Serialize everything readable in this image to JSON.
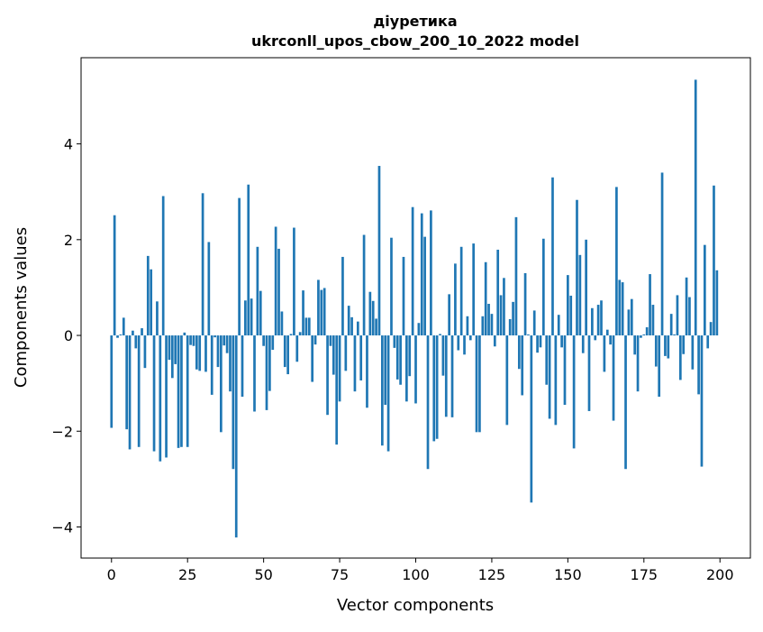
{
  "chart_data": {
    "type": "bar",
    "title": "діуретика",
    "subtitle": "ukrconll_upos_cbow_200_10_2022 model",
    "xlabel": "Vector components",
    "ylabel": "Components values",
    "xlim": [
      -10,
      210
    ],
    "ylim": [
      -4.65,
      5.8
    ],
    "xticks": [
      0,
      25,
      50,
      75,
      100,
      125,
      150,
      175,
      200
    ],
    "yticks": [
      -4,
      -2,
      0,
      2,
      4
    ],
    "ytick_labels": [
      "−4",
      "−2",
      "0",
      "2",
      "4"
    ],
    "bar_color": "#1f77b4",
    "grid": false,
    "values": [
      -1.93,
      2.51,
      -0.05,
      0.02,
      0.37,
      -1.96,
      -2.38,
      0.1,
      -0.27,
      -2.33,
      0.15,
      -0.68,
      1.66,
      1.38,
      -2.42,
      0.71,
      -2.63,
      2.91,
      -2.55,
      -0.51,
      -0.89,
      -0.6,
      -2.35,
      -2.33,
      0.06,
      -2.33,
      -0.2,
      -0.22,
      -0.71,
      -0.74,
      2.97,
      -0.76,
      1.95,
      -1.24,
      -0.04,
      -0.66,
      -2.02,
      -0.21,
      -0.37,
      -1.17,
      -2.79,
      -4.22,
      2.87,
      -1.28,
      0.73,
      3.15,
      0.77,
      -1.59,
      1.85,
      0.93,
      -0.22,
      -1.56,
      -1.16,
      -0.3,
      2.27,
      1.81,
      0.5,
      -0.66,
      -0.81,
      0.03,
      2.25,
      -0.55,
      0.07,
      0.94,
      0.37,
      0.37,
      -0.97,
      -0.19,
      1.16,
      0.95,
      0.99,
      -1.66,
      -0.22,
      -0.82,
      -2.28,
      -1.38,
      1.64,
      -0.74,
      0.62,
      0.38,
      -1.17,
      0.29,
      -0.94,
      2.1,
      -1.51,
      0.91,
      0.72,
      0.35,
      3.54,
      -2.3,
      -1.45,
      -2.42,
      2.04,
      -0.26,
      -0.92,
      -1.03,
      1.64,
      -1.38,
      -0.85,
      2.68,
      -1.42,
      0.26,
      2.55,
      2.06,
      -2.79,
      2.61,
      -2.21,
      -2.16,
      0.03,
      -0.84,
      -1.7,
      0.86,
      -1.71,
      1.5,
      -0.31,
      1.85,
      -0.4,
      0.4,
      -0.1,
      1.92,
      -2.02,
      -2.02,
      0.4,
      1.53,
      0.66,
      0.45,
      -0.23,
      1.79,
      0.84,
      1.2,
      -1.87,
      0.34,
      0.7,
      2.47,
      -0.7,
      -1.25,
      1.3,
      0.02,
      -3.49,
      0.52,
      -0.36,
      -0.25,
      2.02,
      -1.03,
      -1.74,
      3.3,
      -1.87,
      0.43,
      -0.25,
      -1.45,
      1.26,
      0.83,
      -2.36,
      2.83,
      1.68,
      -0.37,
      2.0,
      -1.58,
      0.57,
      -0.1,
      0.64,
      0.73,
      -0.76,
      0.12,
      -0.19,
      -1.78,
      3.1,
      1.16,
      1.11,
      -2.79,
      0.54,
      0.76,
      -0.4,
      -1.17,
      -0.05,
      0.02,
      0.17,
      1.28,
      0.64,
      -0.65,
      -1.28,
      3.4,
      -0.43,
      -0.48,
      0.45,
      0.02,
      0.84,
      -0.93,
      -0.39,
      1.21,
      0.8,
      -0.71,
      5.34,
      -1.23,
      -2.74,
      1.89,
      -0.27,
      0.28,
      3.13,
      1.36
    ]
  }
}
